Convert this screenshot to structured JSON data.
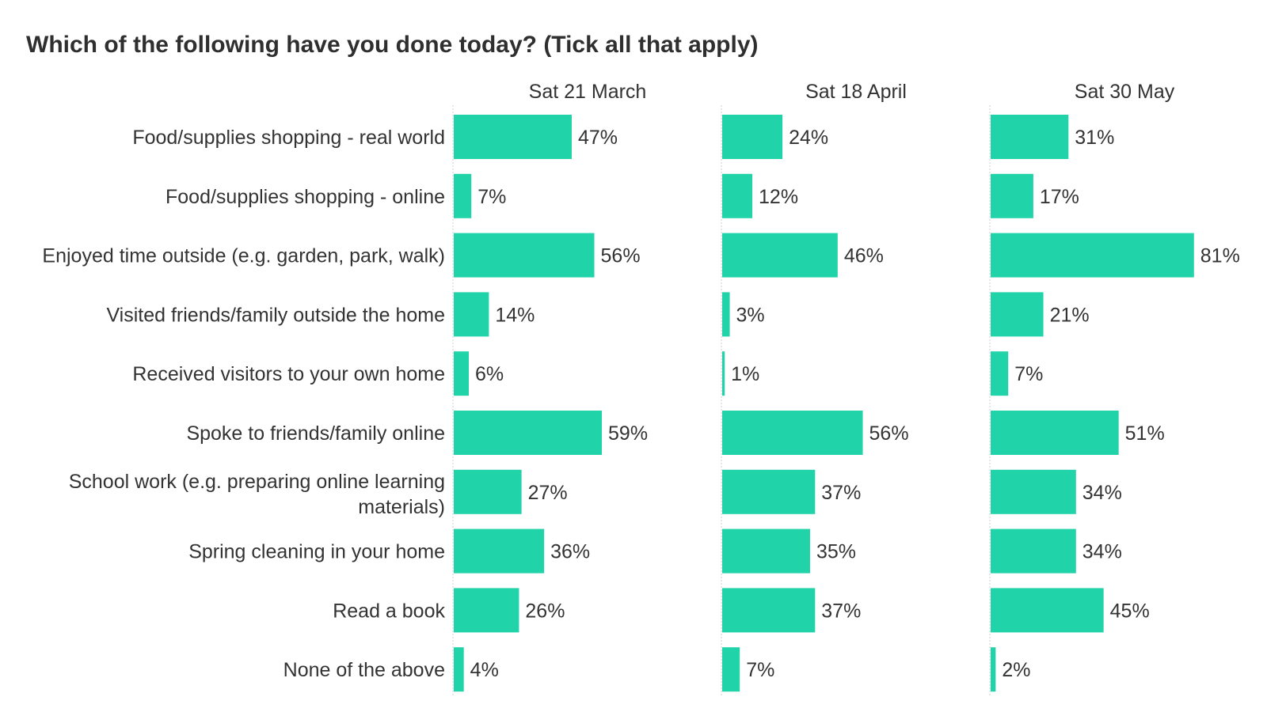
{
  "chart_data": {
    "type": "bar",
    "orientation": "horizontal",
    "title": "Which of the following have you done today? (Tick all that apply)",
    "categories": [
      "Food/supplies shopping - real world",
      "Food/supplies shopping - online",
      "Enjoyed time outside (e.g. garden, park, walk)",
      "Visited friends/family outside the home",
      "Received visitors to your own home",
      "Spoke to friends/family online",
      "School work (e.g. preparing online learning materials)",
      "Spring cleaning in your home",
      "Read a book",
      "None of the above"
    ],
    "series": [
      {
        "name": "Sat 21 March",
        "values": [
          47,
          7,
          56,
          14,
          6,
          59,
          27,
          36,
          26,
          4
        ]
      },
      {
        "name": "Sat 18 April",
        "values": [
          24,
          12,
          46,
          3,
          1,
          56,
          37,
          35,
          37,
          7
        ]
      },
      {
        "name": "Sat 30 May",
        "values": [
          31,
          17,
          81,
          21,
          7,
          51,
          34,
          34,
          45,
          2
        ]
      }
    ],
    "value_suffix": "%",
    "xlim": [
      0,
      100
    ],
    "bar_color": "#20d3a8",
    "grid": false
  }
}
